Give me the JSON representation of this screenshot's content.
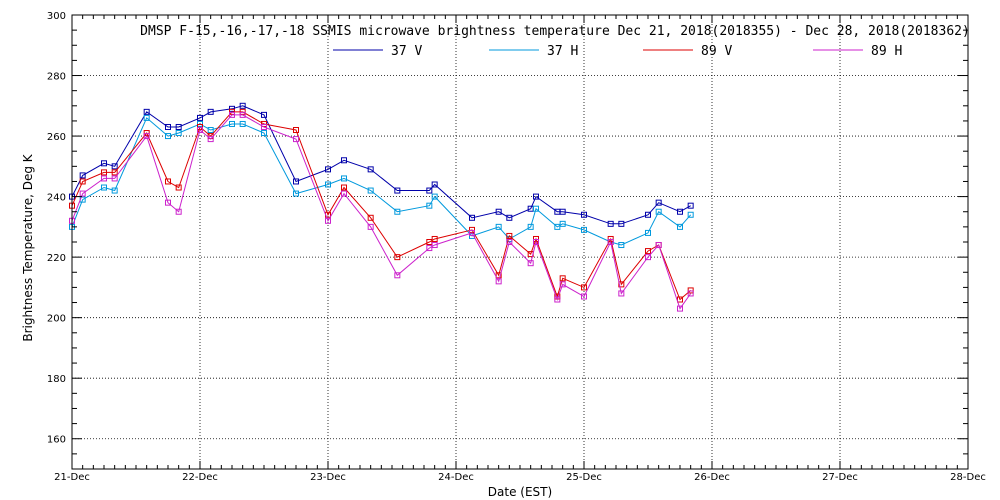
{
  "chart_data": {
    "type": "line",
    "title": "DMSP F-15,-16,-17,-18 SSMIS microwave brightness temperature Dec 21, 2018(2018355) - Dec 28, 2018(2018362)",
    "xlabel": "Date (EST)",
    "ylabel": "Brightness Temperature, Deg K",
    "xlim": [
      "21-Dec",
      "28-Dec"
    ],
    "x_tick_labels": [
      "21-Dec",
      "22-Dec",
      "23-Dec",
      "24-Dec",
      "25-Dec",
      "26-Dec",
      "27-Dec",
      "28-Dec"
    ],
    "ylim": [
      150,
      300
    ],
    "y_ticks": [
      160,
      180,
      200,
      220,
      240,
      260,
      280,
      300
    ],
    "grid": true,
    "legend_position": "top-center",
    "series": [
      {
        "name": "37 V",
        "color": "#0000aa",
        "points": [
          [
            "21-Dec 00:00",
            240
          ],
          [
            "21-Dec 02:00",
            247
          ],
          [
            "21-Dec 06:00",
            251
          ],
          [
            "21-Dec 08:00",
            250
          ],
          [
            "21-Dec 14:00",
            268
          ],
          [
            "21-Dec 18:00",
            263
          ],
          [
            "21-Dec 20:00",
            263
          ],
          [
            "22-Dec 00:00",
            266
          ],
          [
            "22-Dec 02:00",
            268
          ],
          [
            "22-Dec 06:00",
            269
          ],
          [
            "22-Dec 08:00",
            270
          ],
          [
            "22-Dec 12:00",
            267
          ],
          [
            "22-Dec 18:00",
            245
          ],
          [
            "23-Dec 00:00",
            249
          ],
          [
            "23-Dec 03:00",
            252
          ],
          [
            "23-Dec 08:00",
            249
          ],
          [
            "23-Dec 13:00",
            242
          ],
          [
            "23-Dec 19:00",
            242
          ],
          [
            "23-Dec 20:00",
            244
          ],
          [
            "24-Dec 03:00",
            233
          ],
          [
            "24-Dec 08:00",
            235
          ],
          [
            "24-Dec 10:00",
            233
          ],
          [
            "24-Dec 14:00",
            236
          ],
          [
            "24-Dec 15:00",
            240
          ],
          [
            "24-Dec 19:00",
            235
          ],
          [
            "24-Dec 20:00",
            235
          ],
          [
            "25-Dec 00:00",
            234
          ],
          [
            "25-Dec 05:00",
            231
          ],
          [
            "25-Dec 07:00",
            231
          ],
          [
            "25-Dec 12:00",
            234
          ],
          [
            "25-Dec 14:00",
            238
          ],
          [
            "25-Dec 18:00",
            235
          ],
          [
            "25-Dec 20:00",
            237
          ]
        ]
      },
      {
        "name": "37 H",
        "color": "#0099dd",
        "points": [
          [
            "21-Dec 00:00",
            230
          ],
          [
            "21-Dec 02:00",
            239
          ],
          [
            "21-Dec 06:00",
            243
          ],
          [
            "21-Dec 08:00",
            242
          ],
          [
            "21-Dec 14:00",
            266
          ],
          [
            "21-Dec 18:00",
            260
          ],
          [
            "21-Dec 20:00",
            261
          ],
          [
            "22-Dec 00:00",
            264
          ],
          [
            "22-Dec 02:00",
            262
          ],
          [
            "22-Dec 06:00",
            264
          ],
          [
            "22-Dec 08:00",
            264
          ],
          [
            "22-Dec 12:00",
            261
          ],
          [
            "22-Dec 18:00",
            241
          ],
          [
            "23-Dec 00:00",
            244
          ],
          [
            "23-Dec 03:00",
            246
          ],
          [
            "23-Dec 08:00",
            242
          ],
          [
            "23-Dec 13:00",
            235
          ],
          [
            "23-Dec 19:00",
            237
          ],
          [
            "23-Dec 20:00",
            240
          ],
          [
            "24-Dec 03:00",
            227
          ],
          [
            "24-Dec 08:00",
            230
          ],
          [
            "24-Dec 10:00",
            226
          ],
          [
            "24-Dec 14:00",
            230
          ],
          [
            "24-Dec 15:00",
            236
          ],
          [
            "24-Dec 19:00",
            230
          ],
          [
            "24-Dec 20:00",
            231
          ],
          [
            "25-Dec 00:00",
            229
          ],
          [
            "25-Dec 05:00",
            225
          ],
          [
            "25-Dec 07:00",
            224
          ],
          [
            "25-Dec 12:00",
            228
          ],
          [
            "25-Dec 14:00",
            235
          ],
          [
            "25-Dec 18:00",
            230
          ],
          [
            "25-Dec 20:00",
            234
          ]
        ]
      },
      {
        "name": "89 V",
        "color": "#dd0000",
        "points": [
          [
            "21-Dec 00:00",
            237
          ],
          [
            "21-Dec 02:00",
            245
          ],
          [
            "21-Dec 06:00",
            248
          ],
          [
            "21-Dec 08:00",
            248
          ],
          [
            "21-Dec 14:00",
            261
          ],
          [
            "21-Dec 18:00",
            245
          ],
          [
            "21-Dec 20:00",
            243
          ],
          [
            "22-Dec 00:00",
            263
          ],
          [
            "22-Dec 02:00",
            260
          ],
          [
            "22-Dec 06:00",
            268
          ],
          [
            "22-Dec 08:00",
            268
          ],
          [
            "22-Dec 12:00",
            264
          ],
          [
            "22-Dec 18:00",
            262
          ],
          [
            "23-Dec 00:00",
            234
          ],
          [
            "23-Dec 03:00",
            243
          ],
          [
            "23-Dec 08:00",
            233
          ],
          [
            "23-Dec 13:00",
            220
          ],
          [
            "23-Dec 19:00",
            225
          ],
          [
            "23-Dec 20:00",
            226
          ],
          [
            "24-Dec 03:00",
            229
          ],
          [
            "24-Dec 08:00",
            214
          ],
          [
            "24-Dec 10:00",
            227
          ],
          [
            "24-Dec 14:00",
            221
          ],
          [
            "24-Dec 15:00",
            226
          ],
          [
            "24-Dec 19:00",
            207
          ],
          [
            "24-Dec 20:00",
            213
          ],
          [
            "25-Dec 00:00",
            210
          ],
          [
            "25-Dec 05:00",
            226
          ],
          [
            "25-Dec 07:00",
            211
          ],
          [
            "25-Dec 12:00",
            222
          ],
          [
            "25-Dec 14:00",
            224
          ],
          [
            "25-Dec 18:00",
            206
          ],
          [
            "25-Dec 20:00",
            209
          ]
        ]
      },
      {
        "name": "89 H",
        "color": "#cc22cc",
        "points": [
          [
            "21-Dec 00:00",
            232
          ],
          [
            "21-Dec 02:00",
            241
          ],
          [
            "21-Dec 06:00",
            246
          ],
          [
            "21-Dec 08:00",
            246
          ],
          [
            "21-Dec 14:00",
            260
          ],
          [
            "21-Dec 18:00",
            238
          ],
          [
            "21-Dec 20:00",
            235
          ],
          [
            "22-Dec 00:00",
            262
          ],
          [
            "22-Dec 02:00",
            259
          ],
          [
            "22-Dec 06:00",
            267
          ],
          [
            "22-Dec 08:00",
            267
          ],
          [
            "22-Dec 12:00",
            263
          ],
          [
            "22-Dec 18:00",
            259
          ],
          [
            "23-Dec 00:00",
            232
          ],
          [
            "23-Dec 03:00",
            241
          ],
          [
            "23-Dec 08:00",
            230
          ],
          [
            "23-Dec 13:00",
            214
          ],
          [
            "23-Dec 19:00",
            223
          ],
          [
            "23-Dec 20:00",
            224
          ],
          [
            "24-Dec 03:00",
            228
          ],
          [
            "24-Dec 08:00",
            212
          ],
          [
            "24-Dec 10:00",
            225
          ],
          [
            "24-Dec 14:00",
            218
          ],
          [
            "24-Dec 15:00",
            225
          ],
          [
            "24-Dec 19:00",
            206
          ],
          [
            "24-Dec 20:00",
            211
          ],
          [
            "25-Dec 00:00",
            207
          ],
          [
            "25-Dec 05:00",
            225
          ],
          [
            "25-Dec 07:00",
            208
          ],
          [
            "25-Dec 12:00",
            220
          ],
          [
            "25-Dec 14:00",
            224
          ],
          [
            "25-Dec 18:00",
            203
          ],
          [
            "25-Dec 20:00",
            208
          ]
        ]
      }
    ]
  }
}
